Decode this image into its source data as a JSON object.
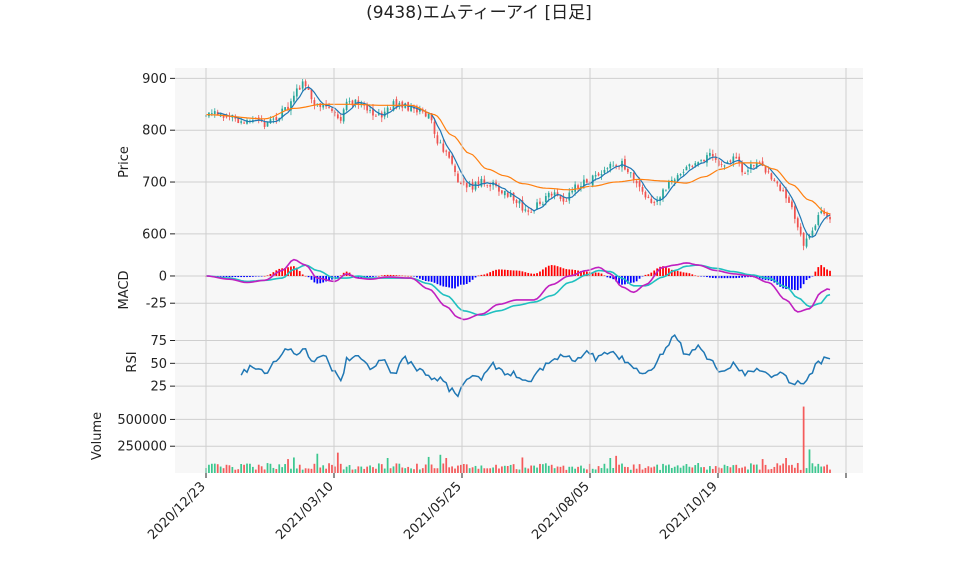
{
  "chart_data": {
    "type": "candlestick",
    "title": "(9438)エムティーアイ  [日足]",
    "colors": {
      "up": "#26a69a",
      "down": "#ef5350",
      "ma_short": "#1f77b4",
      "ma_long": "#ff7f0e",
      "macd_line": "#c020c0",
      "signal_line": "#20c0c0",
      "hist_pos": "#ff0000",
      "hist_neg": "#0000ff",
      "rsi_line": "#1f77b4",
      "vol_up": "#3cc78f",
      "vol_down": "#f45b5b",
      "panel_bg": "#f7f7f7",
      "grid": "#cfcfcf"
    },
    "x_axis": {
      "tick_labels": [
        "2020/12/23",
        "2021/03/10",
        "2021/05/25",
        "2021/08/05",
        "2021/10/19"
      ],
      "num_bars": 214
    },
    "price_panel": {
      "ylabel": "Price",
      "ylim": [
        565,
        920
      ],
      "yticks": [
        600,
        700,
        800,
        900
      ],
      "anchors_close": [
        [
          0,
          835
        ],
        [
          8,
          830
        ],
        [
          12,
          815
        ],
        [
          16,
          822
        ],
        [
          20,
          810
        ],
        [
          24,
          825
        ],
        [
          28,
          845
        ],
        [
          32,
          885
        ],
        [
          34,
          890
        ],
        [
          36,
          855
        ],
        [
          40,
          850
        ],
        [
          44,
          840
        ],
        [
          46,
          820
        ],
        [
          48,
          850
        ],
        [
          52,
          855
        ],
        [
          56,
          835
        ],
        [
          60,
          830
        ],
        [
          64,
          850
        ],
        [
          68,
          845
        ],
        [
          72,
          840
        ],
        [
          76,
          825
        ],
        [
          80,
          770
        ],
        [
          82,
          755
        ],
        [
          84,
          735
        ],
        [
          86,
          700
        ],
        [
          90,
          690
        ],
        [
          94,
          700
        ],
        [
          98,
          695
        ],
        [
          102,
          680
        ],
        [
          106,
          665
        ],
        [
          108,
          650
        ],
        [
          110,
          640
        ],
        [
          114,
          660
        ],
        [
          118,
          675
        ],
        [
          122,
          665
        ],
        [
          126,
          690
        ],
        [
          130,
          700
        ],
        [
          134,
          715
        ],
        [
          138,
          730
        ],
        [
          142,
          735
        ],
        [
          144,
          720
        ],
        [
          146,
          705
        ],
        [
          148,
          690
        ],
        [
          150,
          670
        ],
        [
          152,
          660
        ],
        [
          156,
          680
        ],
        [
          160,
          710
        ],
        [
          164,
          725
        ],
        [
          168,
          740
        ],
        [
          172,
          750
        ],
        [
          174,
          740
        ],
        [
          176,
          735
        ],
        [
          180,
          745
        ],
        [
          184,
          720
        ],
        [
          188,
          735
        ],
        [
          192,
          720
        ],
        [
          194,
          700
        ],
        [
          196,
          690
        ],
        [
          198,
          670
        ],
        [
          200,
          650
        ],
        [
          202,
          610
        ],
        [
          204,
          580
        ],
        [
          206,
          600
        ],
        [
          208,
          620
        ],
        [
          210,
          650
        ],
        [
          212,
          640
        ],
        [
          214,
          620
        ],
        [
          216,
          600
        ],
        [
          218,
          595
        ]
      ],
      "ma_long_anchors": [
        [
          0,
          830
        ],
        [
          20,
          822
        ],
        [
          30,
          842
        ],
        [
          40,
          850
        ],
        [
          50,
          850
        ],
        [
          60,
          848
        ],
        [
          70,
          848
        ],
        [
          78,
          830
        ],
        [
          84,
          790
        ],
        [
          90,
          755
        ],
        [
          96,
          725
        ],
        [
          102,
          712
        ],
        [
          108,
          697
        ],
        [
          116,
          688
        ],
        [
          124,
          685
        ],
        [
          132,
          692
        ],
        [
          140,
          700
        ],
        [
          148,
          705
        ],
        [
          156,
          702
        ],
        [
          164,
          698
        ],
        [
          170,
          710
        ],
        [
          176,
          725
        ],
        [
          182,
          737
        ],
        [
          188,
          737
        ],
        [
          194,
          725
        ],
        [
          200,
          695
        ],
        [
          206,
          665
        ],
        [
          212,
          640
        ],
        [
          218,
          615
        ]
      ]
    },
    "macd_panel": {
      "ylabel": "MACD",
      "ylim": [
        -45,
        22
      ],
      "yticks": [
        0,
        -25
      ],
      "macd_anchors": [
        [
          0,
          0
        ],
        [
          8,
          -3
        ],
        [
          14,
          -6
        ],
        [
          20,
          -4
        ],
        [
          26,
          5
        ],
        [
          30,
          15
        ],
        [
          34,
          10
        ],
        [
          38,
          -2
        ],
        [
          44,
          -5
        ],
        [
          48,
          2
        ],
        [
          52,
          -2
        ],
        [
          56,
          -3
        ],
        [
          62,
          -1
        ],
        [
          70,
          -2
        ],
        [
          76,
          -12
        ],
        [
          82,
          -28
        ],
        [
          86,
          -38
        ],
        [
          88,
          -40
        ],
        [
          94,
          -35
        ],
        [
          100,
          -26
        ],
        [
          106,
          -22
        ],
        [
          112,
          -22
        ],
        [
          118,
          -8
        ],
        [
          124,
          0
        ],
        [
          130,
          5
        ],
        [
          134,
          8
        ],
        [
          138,
          2
        ],
        [
          142,
          -10
        ],
        [
          146,
          -15
        ],
        [
          150,
          -8
        ],
        [
          156,
          8
        ],
        [
          160,
          10
        ],
        [
          164,
          12
        ],
        [
          168,
          10
        ],
        [
          174,
          5
        ],
        [
          180,
          2
        ],
        [
          186,
          0
        ],
        [
          192,
          -6
        ],
        [
          198,
          -22
        ],
        [
          202,
          -33
        ],
        [
          206,
          -30
        ],
        [
          210,
          -15
        ],
        [
          212,
          -12
        ],
        [
          216,
          -15
        ]
      ],
      "signal_anchors": [
        [
          0,
          0
        ],
        [
          8,
          -2
        ],
        [
          14,
          -5
        ],
        [
          20,
          -4
        ],
        [
          26,
          -2
        ],
        [
          30,
          6
        ],
        [
          34,
          10
        ],
        [
          38,
          5
        ],
        [
          44,
          -2
        ],
        [
          48,
          -2
        ],
        [
          52,
          0
        ],
        [
          56,
          -2
        ],
        [
          62,
          -2
        ],
        [
          70,
          -2
        ],
        [
          76,
          -7
        ],
        [
          82,
          -18
        ],
        [
          88,
          -32
        ],
        [
          94,
          -36
        ],
        [
          100,
          -32
        ],
        [
          106,
          -27
        ],
        [
          112,
          -24
        ],
        [
          118,
          -18
        ],
        [
          124,
          -6
        ],
        [
          130,
          1
        ],
        [
          134,
          5
        ],
        [
          138,
          4
        ],
        [
          142,
          -2
        ],
        [
          146,
          -9
        ],
        [
          150,
          -9
        ],
        [
          156,
          -1
        ],
        [
          160,
          5
        ],
        [
          164,
          9
        ],
        [
          168,
          10
        ],
        [
          174,
          7
        ],
        [
          180,
          4
        ],
        [
          186,
          1
        ],
        [
          192,
          -2
        ],
        [
          198,
          -10
        ],
        [
          202,
          -20
        ],
        [
          206,
          -28
        ],
        [
          210,
          -25
        ],
        [
          212,
          -18
        ],
        [
          216,
          -13
        ]
      ]
    },
    "rsi_panel": {
      "ylabel": "RSI",
      "ylim": [
        12,
        92
      ],
      "yticks": [
        25,
        50,
        75
      ],
      "start_index": 12,
      "anchors": [
        [
          12,
          40
        ],
        [
          16,
          47
        ],
        [
          20,
          40
        ],
        [
          24,
          55
        ],
        [
          28,
          68
        ],
        [
          30,
          60
        ],
        [
          34,
          66
        ],
        [
          36,
          54
        ],
        [
          40,
          60
        ],
        [
          44,
          42
        ],
        [
          46,
          28
        ],
        [
          48,
          55
        ],
        [
          52,
          58
        ],
        [
          56,
          46
        ],
        [
          60,
          54
        ],
        [
          64,
          40
        ],
        [
          68,
          55
        ],
        [
          72,
          42
        ],
        [
          76,
          36
        ],
        [
          80,
          33
        ],
        [
          84,
          20
        ],
        [
          86,
          17
        ],
        [
          90,
          36
        ],
        [
          94,
          33
        ],
        [
          98,
          48
        ],
        [
          102,
          40
        ],
        [
          106,
          38
        ],
        [
          108,
          32
        ],
        [
          110,
          28
        ],
        [
          114,
          44
        ],
        [
          118,
          55
        ],
        [
          122,
          58
        ],
        [
          126,
          53
        ],
        [
          130,
          62
        ],
        [
          134,
          55
        ],
        [
          138,
          64
        ],
        [
          142,
          56
        ],
        [
          144,
          50
        ],
        [
          146,
          46
        ],
        [
          148,
          40
        ],
        [
          150,
          42
        ],
        [
          152,
          44
        ],
        [
          156,
          62
        ],
        [
          160,
          78
        ],
        [
          164,
          60
        ],
        [
          168,
          70
        ],
        [
          172,
          55
        ],
        [
          174,
          48
        ],
        [
          176,
          40
        ],
        [
          180,
          48
        ],
        [
          184,
          38
        ],
        [
          188,
          45
        ],
        [
          192,
          38
        ],
        [
          196,
          38
        ],
        [
          200,
          28
        ],
        [
          202,
          28
        ],
        [
          204,
          25
        ],
        [
          206,
          38
        ],
        [
          208,
          47
        ],
        [
          210,
          52
        ],
        [
          212,
          55
        ],
        [
          214,
          48
        ],
        [
          216,
          53
        ]
      ]
    },
    "volume_panel": {
      "ylabel": "Volume",
      "ylim": [
        0,
        700000
      ],
      "yticks": [
        250000,
        500000
      ],
      "baseline": 55000,
      "spikes": [
        [
          28,
          130000
        ],
        [
          30,
          145000
        ],
        [
          38,
          180000
        ],
        [
          45,
          190000
        ],
        [
          62,
          140000
        ],
        [
          76,
          150000
        ],
        [
          80,
          170000
        ],
        [
          82,
          140000
        ],
        [
          108,
          145000
        ],
        [
          138,
          140000
        ],
        [
          140,
          160000
        ],
        [
          186,
          90000
        ],
        [
          190,
          130000
        ],
        [
          198,
          140000
        ],
        [
          204,
          620000
        ],
        [
          206,
          220000
        ]
      ]
    }
  }
}
